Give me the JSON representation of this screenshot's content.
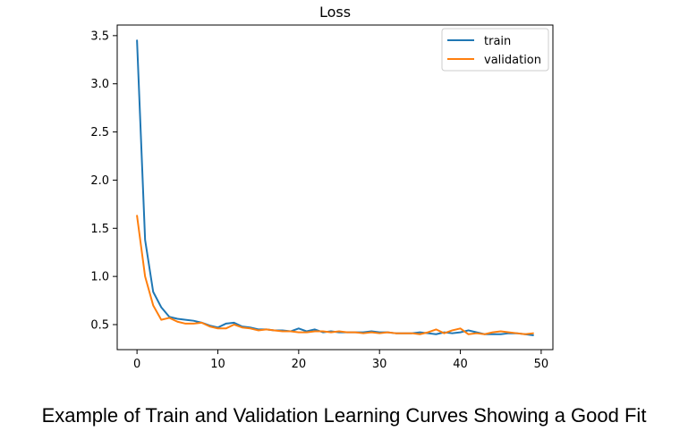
{
  "caption": "Example of Train and Validation Learning Curves Showing a Good Fit",
  "chart_data": {
    "type": "line",
    "title": "Loss",
    "xlabel": "",
    "ylabel": "",
    "xlim": [
      -2.45,
      51.45
    ],
    "ylim": [
      0.24,
      3.61
    ],
    "xticks": [
      0,
      10,
      20,
      30,
      40,
      50
    ],
    "yticks": [
      0.5,
      1.0,
      1.5,
      2.0,
      2.5,
      3.0,
      3.5
    ],
    "xtick_labels": [
      "0",
      "10",
      "20",
      "30",
      "40",
      "50"
    ],
    "ytick_labels": [
      "0.5",
      "1.0",
      "1.5",
      "2.0",
      "2.5",
      "3.0",
      "3.5"
    ],
    "grid": false,
    "legend_position": "top-right",
    "x": [
      0,
      1,
      2,
      3,
      4,
      5,
      6,
      7,
      8,
      9,
      10,
      11,
      12,
      13,
      14,
      15,
      16,
      17,
      18,
      19,
      20,
      21,
      22,
      23,
      24,
      25,
      26,
      27,
      28,
      29,
      30,
      31,
      32,
      33,
      34,
      35,
      36,
      37,
      38,
      39,
      40,
      41,
      42,
      43,
      44,
      45,
      46,
      47,
      48,
      49
    ],
    "series": [
      {
        "name": "train",
        "color": "#1f77b4",
        "values": [
          3.45,
          1.38,
          0.84,
          0.68,
          0.58,
          0.56,
          0.55,
          0.54,
          0.52,
          0.49,
          0.47,
          0.51,
          0.52,
          0.48,
          0.47,
          0.45,
          0.45,
          0.44,
          0.44,
          0.43,
          0.46,
          0.43,
          0.45,
          0.42,
          0.43,
          0.42,
          0.42,
          0.42,
          0.42,
          0.43,
          0.42,
          0.42,
          0.41,
          0.41,
          0.41,
          0.42,
          0.41,
          0.4,
          0.42,
          0.41,
          0.42,
          0.44,
          0.42,
          0.4,
          0.4,
          0.4,
          0.41,
          0.41,
          0.4,
          0.39
        ]
      },
      {
        "name": "validation",
        "color": "#ff7f0e",
        "values": [
          1.63,
          1.0,
          0.7,
          0.55,
          0.57,
          0.53,
          0.51,
          0.51,
          0.52,
          0.48,
          0.46,
          0.46,
          0.5,
          0.47,
          0.46,
          0.44,
          0.45,
          0.44,
          0.43,
          0.43,
          0.42,
          0.42,
          0.43,
          0.43,
          0.42,
          0.43,
          0.42,
          0.42,
          0.41,
          0.42,
          0.41,
          0.42,
          0.41,
          0.41,
          0.41,
          0.4,
          0.42,
          0.45,
          0.41,
          0.44,
          0.46,
          0.4,
          0.41,
          0.4,
          0.42,
          0.43,
          0.42,
          0.41,
          0.4,
          0.41
        ]
      }
    ]
  }
}
